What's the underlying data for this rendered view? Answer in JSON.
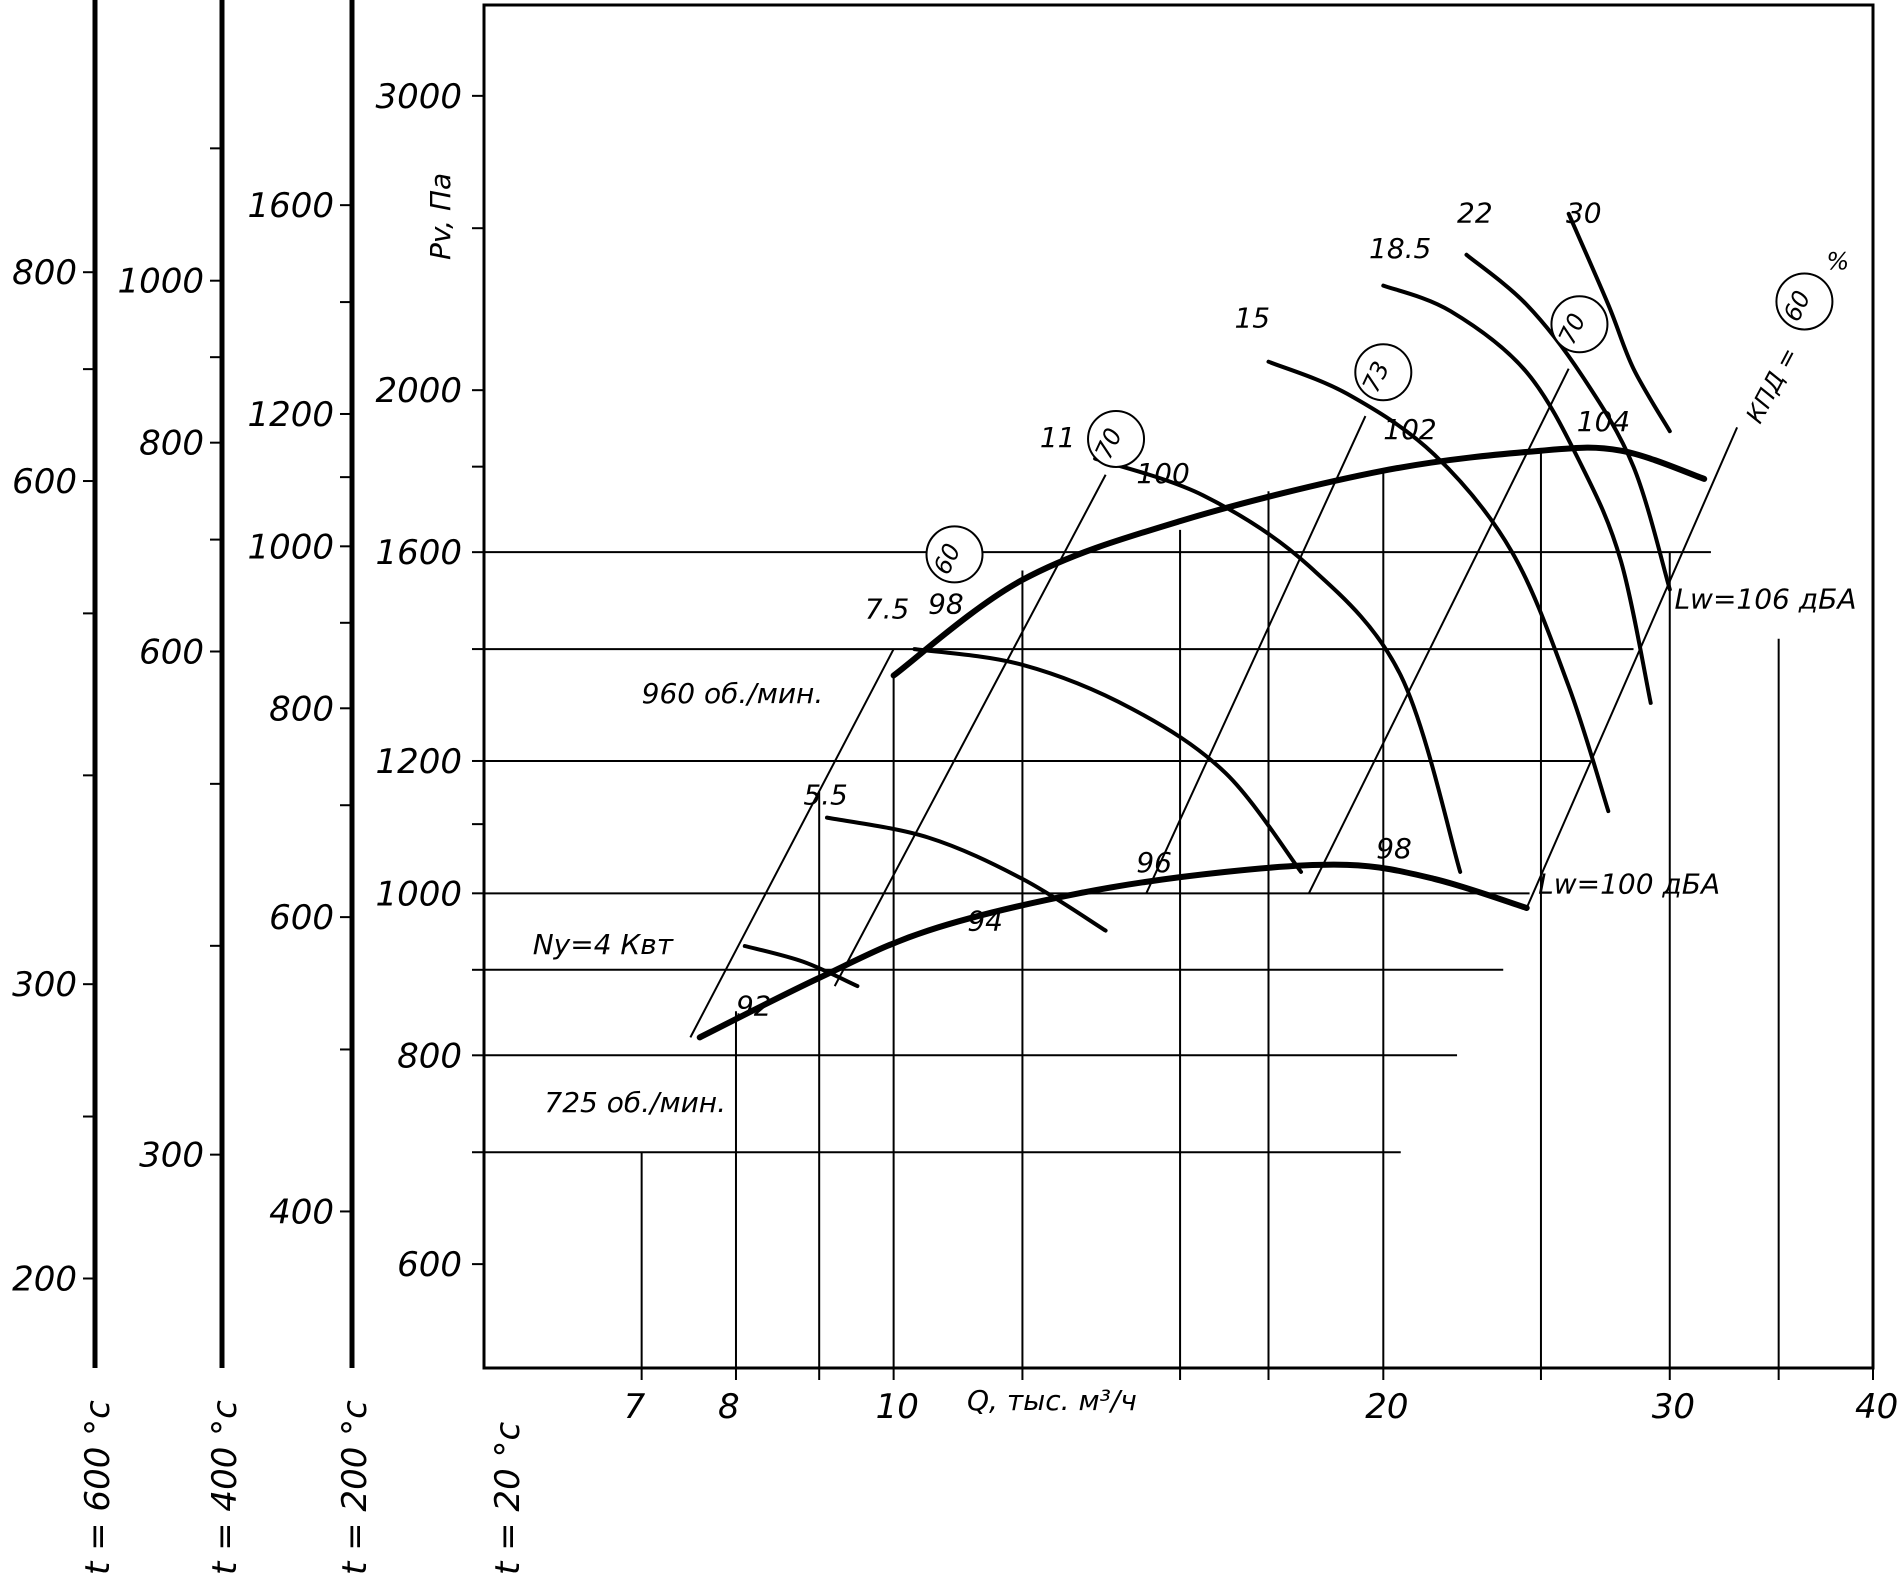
{
  "chart_data": {
    "type": "line",
    "xlabel": "Q, тыс. м³/ч",
    "ylabel": "Pv, Па",
    "xscale": "log",
    "yscale": "log",
    "xlim": [
      5.6,
      40
    ],
    "ylim": [
      520,
      3400
    ],
    "x_ticks": [
      {
        "value": 7,
        "label": "7"
      },
      {
        "value": 8,
        "label": "8"
      },
      {
        "value": 9,
        "label": ""
      },
      {
        "value": 10,
        "label": "10"
      },
      {
        "value": 12,
        "label": ""
      },
      {
        "value": 15,
        "label": ""
      },
      {
        "value": 17,
        "label": ""
      },
      {
        "value": 20,
        "label": "20"
      },
      {
        "value": 25,
        "label": ""
      },
      {
        "value": 30,
        "label": "30"
      },
      {
        "value": 35,
        "label": ""
      },
      {
        "value": 40,
        "label": "40"
      }
    ],
    "y_ticks": [
      {
        "value": 600,
        "label": "600"
      },
      {
        "value": 700,
        "label": ""
      },
      {
        "value": 800,
        "label": "800"
      },
      {
        "value": 900,
        "label": ""
      },
      {
        "value": 1000,
        "label": "1000"
      },
      {
        "value": 1100,
        "label": ""
      },
      {
        "value": 1200,
        "label": "1200"
      },
      {
        "value": 1400,
        "label": ""
      },
      {
        "value": 1600,
        "label": "1600"
      },
      {
        "value": 1800,
        "label": ""
      },
      {
        "value": 2000,
        "label": "2000"
      },
      {
        "value": 2500,
        "label": ""
      },
      {
        "value": 3000,
        "label": "3000"
      }
    ],
    "temperature_scales": [
      {
        "label": "t = 600 °c",
        "factor": 0.34,
        "ticks": [
          {
            "value": 200,
            "label": "200"
          },
          {
            "value": 250,
            "label": ""
          },
          {
            "value": 300,
            "label": "300"
          },
          {
            "value": 400,
            "label": ""
          },
          {
            "value": 500,
            "label": ""
          },
          {
            "value": 600,
            "label": "600"
          },
          {
            "value": 700,
            "label": ""
          },
          {
            "value": 800,
            "label": "800"
          }
        ]
      },
      {
        "label": "t = 400 °c",
        "factor": 0.43,
        "ticks": [
          {
            "value": 300,
            "label": "300"
          },
          {
            "value": 400,
            "label": ""
          },
          {
            "value": 500,
            "label": ""
          },
          {
            "value": 600,
            "label": "600"
          },
          {
            "value": 700,
            "label": ""
          },
          {
            "value": 800,
            "label": "800"
          },
          {
            "value": 900,
            "label": ""
          },
          {
            "value": 1000,
            "label": "1000"
          },
          {
            "value": 1200,
            "label": ""
          }
        ]
      },
      {
        "label": "t = 200 °c",
        "factor": 0.62,
        "ticks": [
          {
            "value": 400,
            "label": "400"
          },
          {
            "value": 500,
            "label": ""
          },
          {
            "value": 600,
            "label": "600"
          },
          {
            "value": 700,
            "label": ""
          },
          {
            "value": 800,
            "label": "800"
          },
          {
            "value": 900,
            "label": ""
          },
          {
            "value": 1000,
            "label": "1000"
          },
          {
            "value": 1100,
            "label": ""
          },
          {
            "value": 1200,
            "label": "1200"
          },
          {
            "value": 1400,
            "label": ""
          },
          {
            "value": 1600,
            "label": "1600"
          }
        ]
      },
      {
        "label": "t = 20 °c",
        "factor": 1.0,
        "ticks": []
      }
    ],
    "grid_h": [
      {
        "y": 700,
        "x_end": 20.5
      },
      {
        "y": 800,
        "x_end": 22.2
      },
      {
        "y": 900,
        "x_end": 23.7
      },
      {
        "y": 1000,
        "x_end": 24.6
      },
      {
        "y": 1200,
        "x_end": 26.8
      },
      {
        "y": 1400,
        "x_end": 28.5
      },
      {
        "y": 1600,
        "x_end": 31.8
      }
    ],
    "grid_v": [
      {
        "x": 7,
        "y_end": 700
      },
      {
        "x": 8,
        "y_end": 850
      },
      {
        "x": 9,
        "y_end": 1150
      },
      {
        "x": 10,
        "y_end": 1350
      },
      {
        "x": 12,
        "y_end": 1560
      },
      {
        "x": 15,
        "y_end": 1650
      },
      {
        "x": 17,
        "y_end": 1740
      },
      {
        "x": 20,
        "y_end": 1790
      },
      {
        "x": 25,
        "y_end": 1840
      },
      {
        "x": 30,
        "y_end": 1600
      },
      {
        "x": 35,
        "y_end": 1420
      }
    ],
    "series": [
      {
        "name": "960 об./мин.",
        "style": "bound",
        "points": [
          [
            10.0,
            1350
          ],
          [
            12.0,
            1540
          ],
          [
            15.0,
            1670
          ],
          [
            20.0,
            1790
          ],
          [
            25.0,
            1840
          ],
          [
            28.0,
            1840
          ],
          [
            31.5,
            1770
          ]
        ]
      },
      {
        "name": "725 об./мин.",
        "style": "bound",
        "points": [
          [
            7.6,
            820
          ],
          [
            9.0,
            890
          ],
          [
            10.5,
            950
          ],
          [
            13.0,
            1000
          ],
          [
            16.0,
            1030
          ],
          [
            19.0,
            1040
          ],
          [
            21.5,
            1020
          ],
          [
            24.5,
            980
          ]
        ]
      },
      {
        "name": "Ny=4 Квт",
        "style": "curve",
        "points": [
          [
            8.1,
            930
          ],
          [
            8.8,
            910
          ],
          [
            9.5,
            880
          ]
        ]
      },
      {
        "name": "5.5",
        "style": "curve",
        "points": [
          [
            9.1,
            1110
          ],
          [
            10.5,
            1080
          ],
          [
            12.0,
            1020
          ],
          [
            13.5,
            950
          ]
        ]
      },
      {
        "name": "7.5",
        "style": "curve",
        "points": [
          [
            10.3,
            1400
          ],
          [
            12.0,
            1370
          ],
          [
            14.0,
            1290
          ],
          [
            16.0,
            1180
          ],
          [
            17.8,
            1030
          ]
        ]
      },
      {
        "name": "11",
        "style": "curve",
        "points": [
          [
            13.3,
            1820
          ],
          [
            15.5,
            1730
          ],
          [
            18.0,
            1570
          ],
          [
            20.5,
            1350
          ],
          [
            22.3,
            1030
          ]
        ]
      },
      {
        "name": "15",
        "style": "curve",
        "points": [
          [
            17.0,
            2080
          ],
          [
            19.0,
            1990
          ],
          [
            21.5,
            1830
          ],
          [
            24.0,
            1600
          ],
          [
            26.0,
            1330
          ],
          [
            27.5,
            1120
          ]
        ]
      },
      {
        "name": "18.5",
        "style": "curve",
        "points": [
          [
            20.0,
            2310
          ],
          [
            22.0,
            2230
          ],
          [
            24.5,
            2050
          ],
          [
            26.5,
            1800
          ],
          [
            28.0,
            1580
          ],
          [
            29.2,
            1300
          ]
        ]
      },
      {
        "name": "22",
        "style": "curve",
        "points": [
          [
            22.5,
            2410
          ],
          [
            24.5,
            2250
          ],
          [
            26.5,
            2040
          ],
          [
            28.5,
            1800
          ],
          [
            30.0,
            1520
          ]
        ]
      },
      {
        "name": "30",
        "style": "curve",
        "points": [
          [
            26.0,
            2550
          ],
          [
            27.5,
            2250
          ],
          [
            28.5,
            2060
          ],
          [
            30.0,
            1890
          ]
        ]
      }
    ],
    "efficiency_lines": [
      {
        "label": "60",
        "points": [
          [
            7.5,
            820
          ],
          [
            10.0,
            1400
          ]
        ]
      },
      {
        "label": "70",
        "points": [
          [
            9.2,
            880
          ],
          [
            13.5,
            1780
          ]
        ]
      },
      {
        "label": "73",
        "points": [
          [
            14.3,
            1000
          ],
          [
            19.5,
            1930
          ]
        ]
      },
      {
        "label": "70",
        "points": [
          [
            18.0,
            1000
          ],
          [
            26.0,
            2060
          ]
        ]
      },
      {
        "label": "60",
        "points": [
          [
            24.5,
            980
          ],
          [
            33.0,
            1900
          ]
        ]
      }
    ],
    "point_labels": [
      {
        "text": "11",
        "x": 12.3,
        "y": 1850
      },
      {
        "text": "15",
        "x": 16.2,
        "y": 2180
      },
      {
        "text": "18.5",
        "x": 19.6,
        "y": 2400
      },
      {
        "text": "22",
        "x": 22.2,
        "y": 2520
      },
      {
        "text": "30",
        "x": 25.9,
        "y": 2520
      },
      {
        "text": "7.5",
        "x": 9.6,
        "y": 1460
      },
      {
        "text": "5.5",
        "x": 8.8,
        "y": 1130
      },
      {
        "text": "98",
        "x": 10.5,
        "y": 1470
      },
      {
        "text": "100",
        "x": 14.1,
        "y": 1760
      },
      {
        "text": "102",
        "x": 20.0,
        "y": 1870
      },
      {
        "text": "104",
        "x": 26.3,
        "y": 1890
      },
      {
        "text": "94",
        "x": 11.1,
        "y": 950
      },
      {
        "text": "96",
        "x": 14.1,
        "y": 1030
      },
      {
        "text": "98",
        "x": 19.8,
        "y": 1050
      },
      {
        "text": "92",
        "x": 8.0,
        "y": 845
      },
      {
        "text": "960 об./мин.",
        "x": 7.0,
        "y": 1300
      },
      {
        "text": "725 об./мин.",
        "x": 6.1,
        "y": 740
      },
      {
        "text": "Ny=4 Квт",
        "x": 6.0,
        "y": 920
      },
      {
        "text": "Lw=106 дБА",
        "x": 30.2,
        "y": 1480
      },
      {
        "text": "Lw=100 дБА",
        "x": 24.9,
        "y": 1000
      }
    ],
    "circle_labels": [
      {
        "text": "60",
        "x": 10.9,
        "y": 1595
      },
      {
        "text": "70",
        "x": 13.7,
        "y": 1870
      },
      {
        "text": "73",
        "x": 20.0,
        "y": 2050
      },
      {
        "text": "70",
        "x": 26.4,
        "y": 2190
      },
      {
        "text": "60",
        "x": 36.3,
        "y": 2260
      }
    ],
    "efficiency_label": "КПД =",
    "efficiency_unit": "%"
  }
}
